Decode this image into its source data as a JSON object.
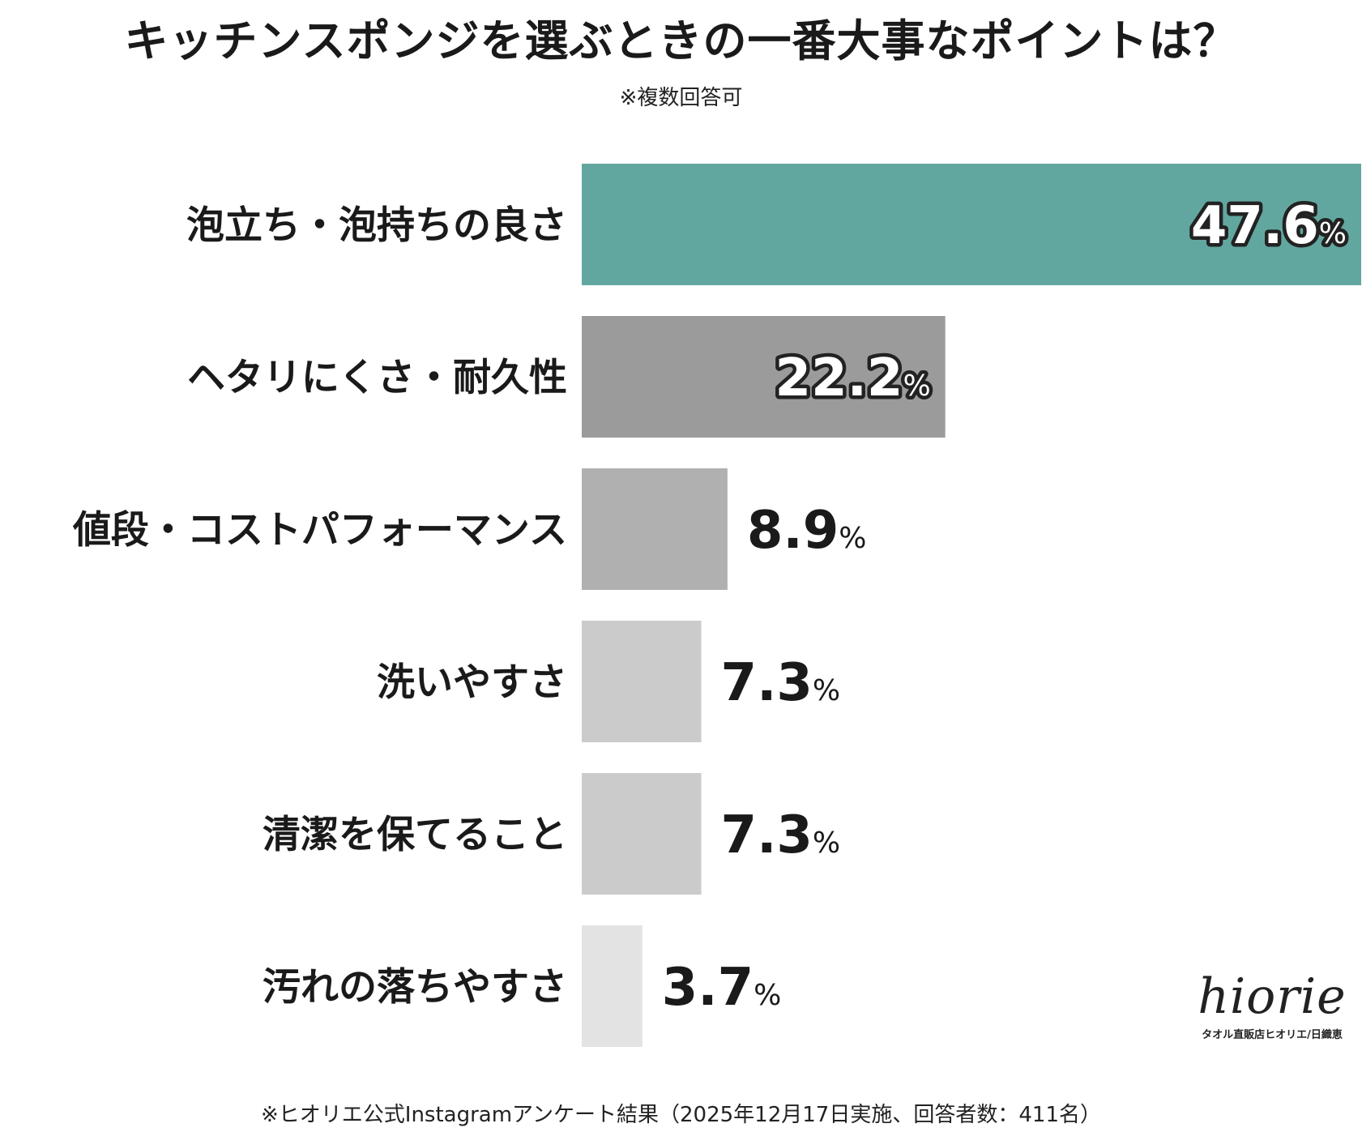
{
  "title": "キッチンスポンジを選ぶときの一番大事なポイントは？",
  "subtitle": "※複数回答可",
  "chart_data": {
    "type": "bar",
    "orientation": "horizontal",
    "categories": [
      "泡立ち・泡持ちの良さ",
      "ヘタリにくさ・耐久性",
      "値段・コストパフォーマンス",
      "洗いやすさ",
      "清潔を保てること",
      "汚れの落ちやすさ"
    ],
    "values": [
      47.6,
      22.2,
      8.9,
      7.3,
      7.3,
      3.7
    ],
    "value_labels": [
      "47.6",
      "22.2",
      "8.9",
      "7.3",
      "7.3",
      "3.7"
    ],
    "unit": "%",
    "bar_colors": [
      "#62a79f",
      "#9b9b9b",
      "#b0b0b0",
      "#cbcbcb",
      "#cbcbcb",
      "#e3e3e3"
    ],
    "xlim": [
      0,
      47.6
    ],
    "grid": false,
    "legend": "none"
  },
  "footnote": "※ヒオリエ公式Instagramアンケート結果（2025年12月17日実施、回答者数：411名）",
  "logo": {
    "wordmark": "hiorie",
    "tagline": "タオル直販店ヒオリエ/日織恵"
  }
}
